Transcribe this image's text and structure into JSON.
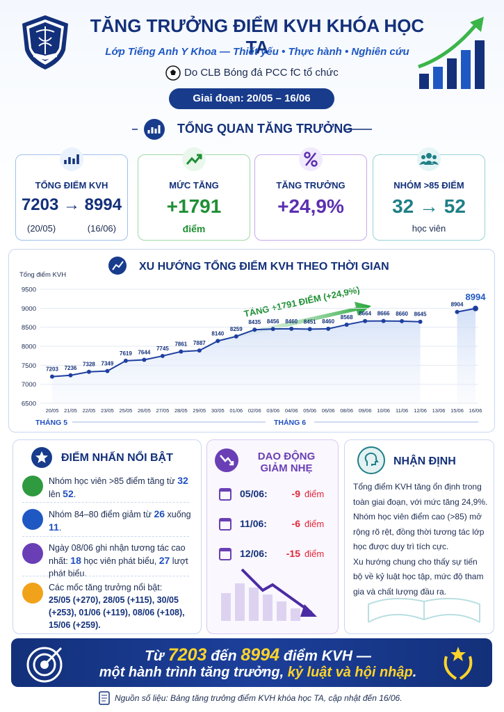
{
  "header": {
    "title": "TĂNG TRƯỞNG ĐIỂM KVH KHÓA HỌC TA",
    "subtitle": "Lớp Tiếng Anh Y Khoa — Thiết yếu • Thực hành • Nghiên cứu",
    "organizer": "Do CLB Bóng đá PCC fC tổ chức",
    "period": "Giai đoạn: 20/05 – 16/06"
  },
  "overview": {
    "title": "TỔNG QUAN TĂNG TRƯỞNG",
    "cards": [
      {
        "label": "TỔNG ĐIỂM KVH",
        "value": "7203 → 8994",
        "notes": [
          "(20/05)",
          "(16/06)"
        ]
      },
      {
        "label": "MỨC TĂNG",
        "value": "+1791",
        "notes": [
          "điểm"
        ]
      },
      {
        "label": "TĂNG TRƯỞNG",
        "value": "+24,9%"
      },
      {
        "label": "NHÓM >85 ĐIỂM",
        "value": "32 → 52",
        "notes": [
          "học viên"
        ]
      }
    ]
  },
  "chart_data": {
    "type": "line",
    "title": "XU HƯỚNG TỔNG ĐIỂM KVH THEO THỜI GIAN",
    "y_label": "Tổng điểm KVH",
    "categories": [
      "20/05",
      "21/05",
      "22/05",
      "23/05",
      "25/05",
      "26/05",
      "27/05",
      "28/05",
      "29/05",
      "30/05",
      "01/06",
      "02/06",
      "03/06",
      "04/06",
      "05/06",
      "06/06",
      "08/06",
      "09/06",
      "10/06",
      "11/06",
      "12/06",
      "13/06",
      "15/06",
      "16/06"
    ],
    "series": [
      {
        "name": "Tổng điểm KVH",
        "color": "#1e3fa0",
        "values": [
          7203,
          7236,
          7328,
          7349,
          7619,
          7644,
          7745,
          7861,
          7887,
          8140,
          8259,
          8435,
          8456,
          8460,
          8451,
          8460,
          8568,
          8664,
          8666,
          8660,
          8645,
          null,
          8904,
          8994
        ]
      }
    ],
    "ylim": [
      6500,
      9500
    ],
    "yticks": [
      6500,
      7000,
      7500,
      8000,
      8500,
      9000,
      9500
    ],
    "grid": true,
    "annotation": "TĂNG +1791 ĐIỂM (+24,9%)",
    "month_labels": [
      "THÁNG 5",
      "THÁNG 6"
    ]
  },
  "highlights": {
    "title": "ĐIỂM NHẤN NỔI BẬT",
    "items": [
      [
        "Nhóm học viên >85 điểm tăng từ ",
        "32",
        " lên ",
        "52",
        "."
      ],
      [
        "Nhóm 84–80 điểm giảm từ ",
        "26",
        " xuống ",
        "11",
        "."
      ],
      [
        "Ngày 08/06 ghi nhận tương tác cao nhất: ",
        "18",
        " học viên phát biểu, ",
        "27",
        " lượt phát biểu."
      ],
      [
        "Các mốc tăng trưởng nổi bật: ",
        "25/05 (+270),  28/05 (+115), 30/05 (+253),  01/06 (+119), 08/06 (+108),  15/06 (+259)."
      ]
    ]
  },
  "dips": {
    "title": "DAO ĐỘNG GIẢM NHẸ",
    "items": [
      {
        "date": "05/06:",
        "change": "-9",
        "unit": "điểm"
      },
      {
        "date": "11/06:",
        "change": "-6",
        "unit": "điểm"
      },
      {
        "date": "12/06:",
        "change": "-15",
        "unit": "điểm"
      }
    ]
  },
  "insight": {
    "title": "NHẬN ĐỊNH",
    "paragraphs": [
      "Tổng điểm KVH tăng ổn định trong toàn giai đoạn, với mức tăng 24,9%. Nhóm học viên điểm cao (>85) mở rộng rõ rệt, đồng thời tương tác lớp học được duy trì tích cực.",
      "Xu hướng chung cho thấy sự tiến bộ về kỷ luật học tập, mức độ tham gia và chất lượng đầu ra."
    ]
  },
  "banner": {
    "line1": [
      "Từ ",
      "7203",
      " đến ",
      "8994",
      " điểm KVH —"
    ],
    "line2": [
      "một hành trình tăng trưởng, ",
      "kỷ luật và hội nhập",
      "."
    ]
  },
  "footer": "Nguồn số liệu: Bảng tăng trưởng điểm KVH khóa học TA, cập nhật đến 16/06."
}
